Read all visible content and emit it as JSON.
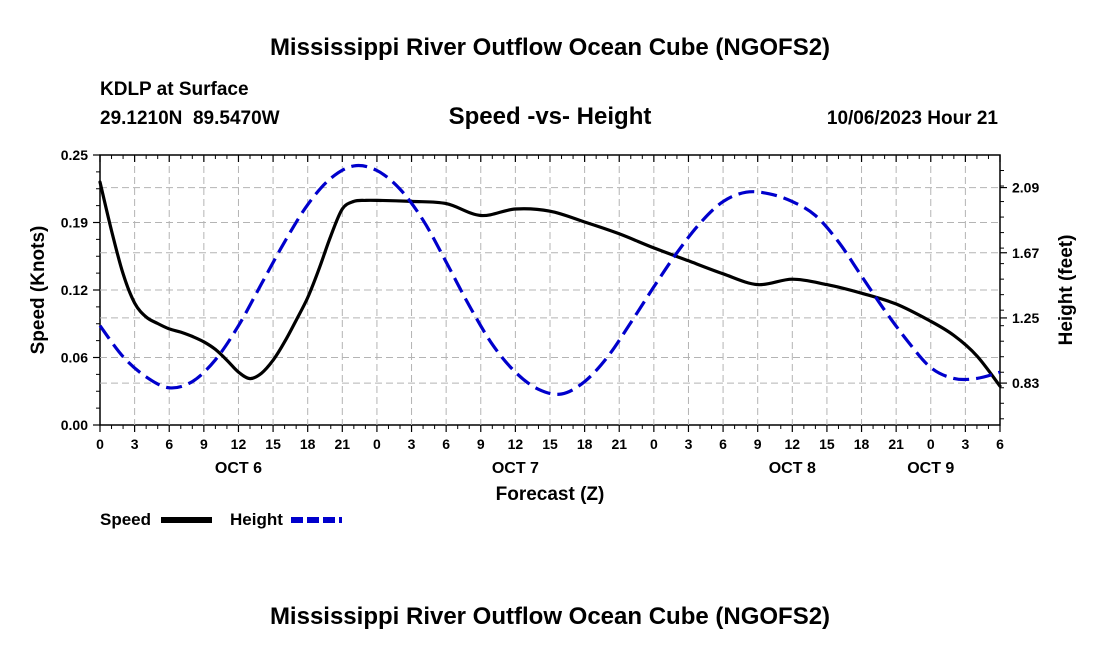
{
  "chart_data": {
    "type": "line",
    "title": "Mississippi River Outflow Ocean Cube (NGOFS2)",
    "station": "KDLP at Surface",
    "coords": "29.1210N  89.5470W",
    "subtitle": "Speed -vs- Height",
    "timestamp": "10/06/2023 Hour 21",
    "xlabel": "Forecast (Z)",
    "ylabel_left": "Speed (Knots)",
    "ylabel_right": "Height (feet)",
    "x_range_hours": [
      0,
      78
    ],
    "x_tick_step_hours": 3,
    "x_tick_labels": [
      "0",
      "3",
      "6",
      "9",
      "12",
      "15",
      "18",
      "21",
      "0",
      "3",
      "6",
      "9",
      "12",
      "15",
      "18",
      "21",
      "0",
      "3",
      "6",
      "9",
      "12",
      "15",
      "18",
      "21",
      "0",
      "3",
      "6"
    ],
    "day_labels": [
      {
        "hour": 12,
        "label": "OCT 6"
      },
      {
        "hour": 36,
        "label": "OCT 7"
      },
      {
        "hour": 60,
        "label": "OCT 8"
      },
      {
        "hour": 72,
        "label": "OCT 9"
      }
    ],
    "ylim_left": [
      0,
      0.25
    ],
    "yticks_left": [
      "0.00",
      "0.06",
      "0.12",
      "0.19",
      "0.25"
    ],
    "ylim_right": [
      0.56,
      2.3
    ],
    "yticks_right": [
      {
        "value": 0.83,
        "label": "0.83"
      },
      {
        "value": 1.25,
        "label": "1.25"
      },
      {
        "value": 1.67,
        "label": "1.67"
      },
      {
        "value": 2.09,
        "label": "2.09"
      }
    ],
    "grid": true,
    "legend_position": "bottom-left",
    "series": [
      {
        "name": "Speed",
        "axis": "left",
        "color": "#000000",
        "style": "solid",
        "x": [
          0,
          1,
          2,
          3,
          4,
          5,
          6,
          7,
          8,
          9,
          10,
          11,
          12,
          13,
          14,
          15,
          16,
          17,
          18,
          19,
          20,
          21,
          22,
          23,
          24,
          27,
          30,
          33,
          36,
          39,
          42,
          45,
          48,
          51,
          54,
          57,
          60,
          63,
          66,
          69,
          72,
          74,
          76,
          78
        ],
        "values": [
          0.225,
          0.18,
          0.14,
          0.113,
          0.1,
          0.094,
          0.089,
          0.086,
          0.082,
          0.077,
          0.07,
          0.06,
          0.049,
          0.043,
          0.048,
          0.06,
          0.077,
          0.097,
          0.118,
          0.145,
          0.175,
          0.2,
          0.207,
          0.208,
          0.208,
          0.207,
          0.205,
          0.194,
          0.2,
          0.198,
          0.188,
          0.177,
          0.164,
          0.152,
          0.14,
          0.13,
          0.135,
          0.13,
          0.122,
          0.112,
          0.096,
          0.083,
          0.064,
          0.036
        ]
      },
      {
        "name": "Height",
        "axis": "right",
        "color": "#0000cc",
        "style": "dashed",
        "x": [
          0,
          2,
          4,
          6,
          8,
          10,
          12,
          14,
          16,
          18,
          20,
          22,
          24,
          26,
          28,
          30,
          32,
          34,
          36,
          38,
          40,
          42,
          44,
          46,
          48,
          50,
          52,
          54,
          56,
          58,
          60,
          62,
          64,
          66,
          68,
          70,
          72,
          74,
          76,
          78
        ],
        "values": [
          1.2,
          1.0,
          0.87,
          0.8,
          0.84,
          0.98,
          1.2,
          1.47,
          1.74,
          1.98,
          2.15,
          2.23,
          2.2,
          2.08,
          1.88,
          1.61,
          1.33,
          1.08,
          0.9,
          0.79,
          0.76,
          0.84,
          1.0,
          1.22,
          1.45,
          1.67,
          1.86,
          2.0,
          2.06,
          2.05,
          2.0,
          1.91,
          1.74,
          1.52,
          1.3,
          1.1,
          0.93,
          0.86,
          0.86,
          0.9
        ]
      }
    ],
    "legend": [
      {
        "label": "Speed",
        "series": "Speed"
      },
      {
        "label": "Height",
        "series": "Height"
      }
    ],
    "footer_title": "Mississippi River Outflow Ocean Cube (NGOFS2)"
  }
}
